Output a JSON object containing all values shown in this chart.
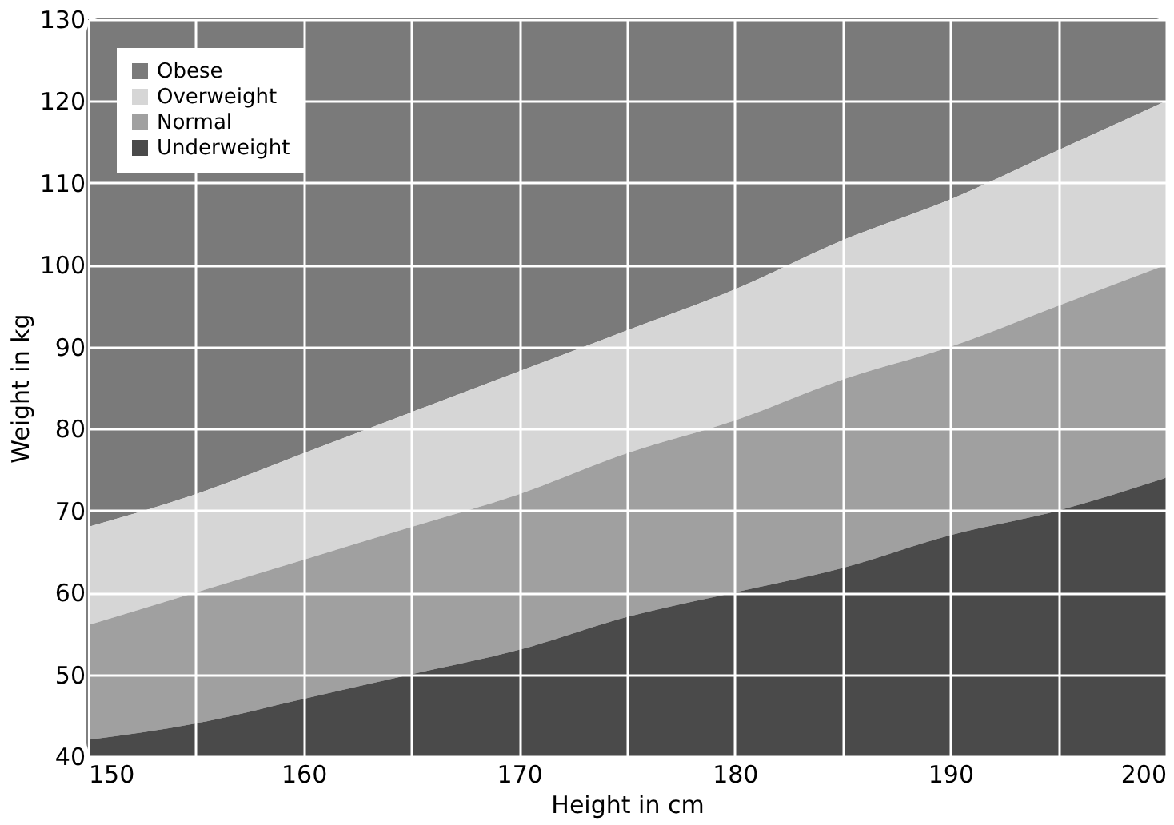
{
  "chart_data": {
    "type": "area",
    "xlabel": "Height in cm",
    "ylabel": "Weight in kg",
    "x": [
      150,
      155,
      160,
      165,
      170,
      175,
      180,
      185,
      190,
      195,
      200
    ],
    "series": [
      {
        "name": "Obese",
        "color": "#7a7a7a",
        "values": [
          130,
          130,
          130,
          130,
          130,
          130,
          130,
          130,
          130,
          130,
          130
        ]
      },
      {
        "name": "Overweight",
        "color": "#d6d6d6",
        "values": [
          68,
          72,
          77,
          82,
          87,
          92,
          97,
          103,
          108,
          114,
          120
        ]
      },
      {
        "name": "Normal",
        "color": "#a0a0a0",
        "values": [
          56,
          60,
          64,
          68,
          72,
          77,
          81,
          86,
          90,
          95,
          100
        ]
      },
      {
        "name": "Underweight",
        "color": "#4a4a4a",
        "values": [
          42,
          44,
          47,
          50,
          53,
          57,
          60,
          63,
          67,
          70,
          74
        ]
      }
    ],
    "xlim": [
      150,
      200
    ],
    "ylim": [
      40,
      130
    ],
    "xticks": [
      150,
      {
        "value": 155,
        "label": null
      },
      160,
      {
        "value": 165,
        "label": null
      },
      170,
      {
        "value": 175,
        "label": null
      },
      180,
      {
        "value": 185,
        "label": null
      },
      190,
      {
        "value": 195,
        "label": null
      },
      200
    ],
    "yticks": [
      40,
      50,
      60,
      70,
      80,
      90,
      100,
      110,
      120,
      130
    ],
    "grid": true,
    "legend": "top left"
  }
}
